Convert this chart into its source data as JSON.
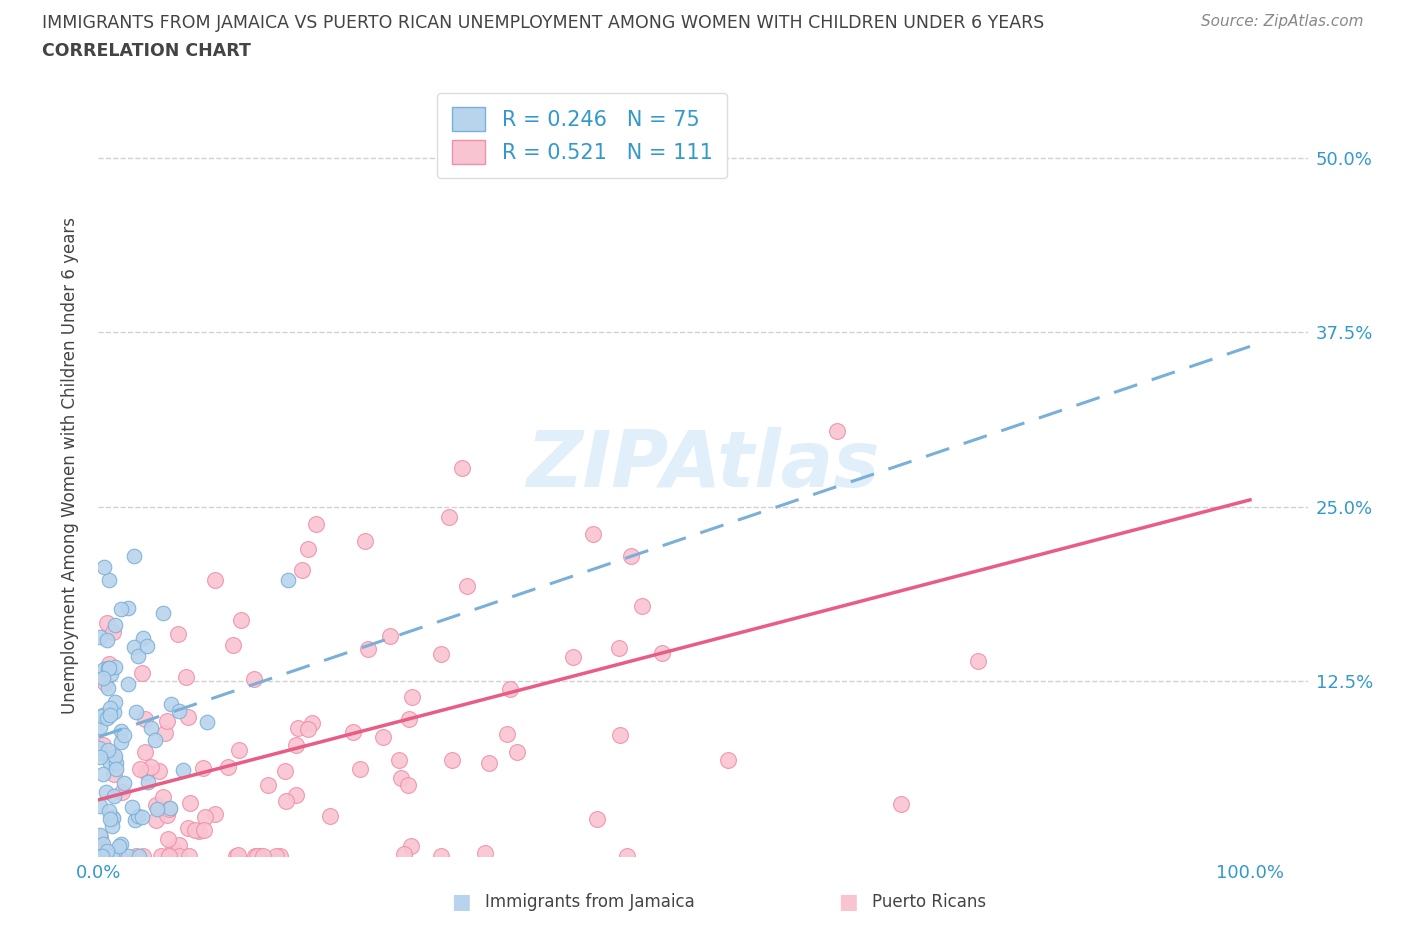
{
  "title_line1": "IMMIGRANTS FROM JAMAICA VS PUERTO RICAN UNEMPLOYMENT AMONG WOMEN WITH CHILDREN UNDER 6 YEARS",
  "title_line2": "CORRELATION CHART",
  "source_text": "Source: ZipAtlas.com",
  "ylabel": "Unemployment Among Women with Children Under 6 years",
  "xlim": [
    0.0,
    1.05
  ],
  "ylim": [
    0.0,
    0.56
  ],
  "yticks": [
    0.125,
    0.25,
    0.375,
    0.5
  ],
  "ytick_labels": [
    "12.5%",
    "25.0%",
    "37.5%",
    "50.0%"
  ],
  "xticks": [
    0.0,
    1.0
  ],
  "xtick_labels": [
    "0.0%",
    "100.0%"
  ],
  "blue_fill": "#b8d4ed",
  "blue_edge": "#7ab0d8",
  "pink_fill": "#f9c4d2",
  "pink_edge": "#f090aa",
  "line_blue_color": "#7ab0d8",
  "line_pink_color": "#e85c85",
  "title_color": "#444444",
  "source_color": "#888888",
  "legend_val_color": "#3399cc",
  "grid_color": "#cccccc",
  "background_color": "#ffffff",
  "watermark_color": "#cce5f5",
  "jamaica_R": 0.246,
  "jamaica_N": 75,
  "puertorico_R": 0.521,
  "puertorico_N": 111,
  "jam_trendline_x0": 0.0,
  "jam_trendline_y0": 0.085,
  "jam_trendline_x1": 1.0,
  "jam_trendline_y1": 0.365,
  "pr_trendline_x0": 0.0,
  "pr_trendline_y0": 0.04,
  "pr_trendline_x1": 1.0,
  "pr_trendline_y1": 0.255,
  "jamaica_seed": 77,
  "puertorico_seed": 55
}
